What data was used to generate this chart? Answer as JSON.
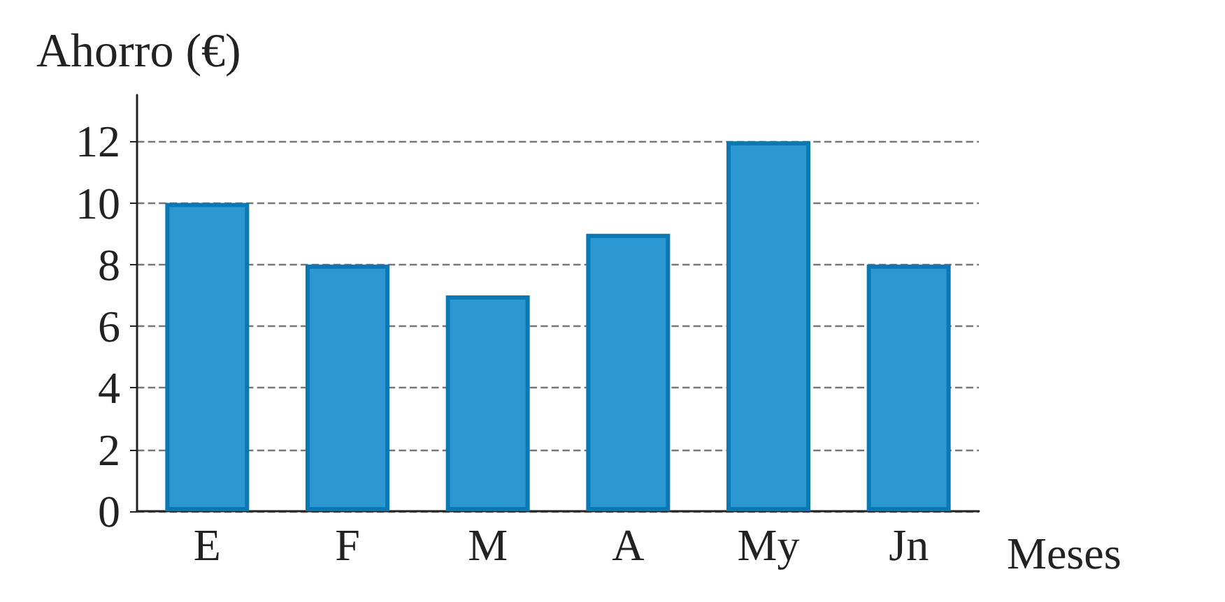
{
  "chart_data": {
    "type": "bar",
    "ylabel": "Ahorro (€)",
    "xlabel": "Meses",
    "categories": [
      "E",
      "F",
      "M",
      "A",
      "My",
      "Jn"
    ],
    "values": [
      10,
      8,
      7,
      9,
      12,
      8
    ],
    "color": "#2b98d1",
    "ylim": [
      0,
      13.5
    ],
    "yticks": [
      0,
      2,
      4,
      6,
      8,
      10,
      12
    ],
    "grid": "y"
  }
}
